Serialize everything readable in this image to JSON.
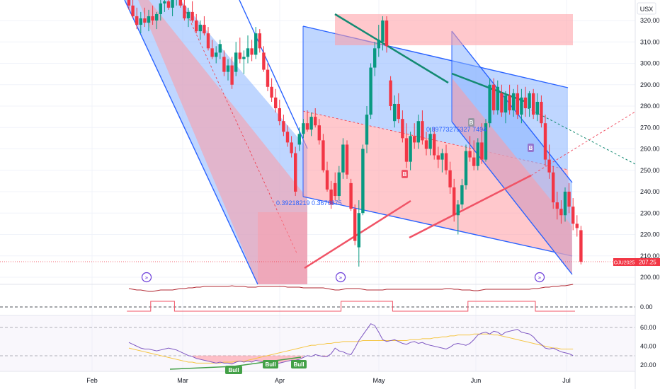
{
  "currency": "USX",
  "symbol_tag": "OJU2025",
  "last_price_label": "207.25",
  "colors": {
    "up": "#089981",
    "down": "#f23645",
    "channel_blue": "#2962ff",
    "fill_blue": "#8ab4ff",
    "fill_red": "#ff9aa3",
    "trend_green": "#138a72",
    "trend_red": "#f05366",
    "rsi_line": "#7e57c2",
    "rsi_ma": "#f5c542",
    "bull_badge": "#43a047"
  },
  "chart_data": {
    "type": "candlestick",
    "price_axis": {
      "ticks": [
        200,
        210,
        220,
        230,
        240,
        250,
        260,
        270,
        280,
        290,
        300,
        310,
        320
      ],
      "range": [
        193,
        330
      ]
    },
    "indicator1_axis": {
      "ticks": [
        "0.00"
      ]
    },
    "rsi_axis": {
      "ticks": [
        20,
        40,
        60
      ],
      "range": [
        15,
        70
      ],
      "overbought": 70,
      "oversold": 30
    },
    "x_labels": [
      "Feb",
      "Mar",
      "Apr",
      "May",
      "Jun",
      "Jul"
    ],
    "annotations": {
      "fib_text_1": "0.39218219 0.3670875",
      "fib_text_2": "0.89773275327 7494"
    },
    "candle_markers": [
      "B",
      "B",
      "B"
    ],
    "bull_labels": [
      "Bull",
      "Bull",
      "Bull"
    ],
    "candles": [
      {
        "d": "Jan 28",
        "o": 331,
        "h": 335,
        "l": 325,
        "c": 327
      },
      {
        "d": "Jan 29",
        "o": 327,
        "h": 330,
        "l": 321,
        "c": 322
      },
      {
        "d": "Jan 30",
        "o": 322,
        "h": 326,
        "l": 316,
        "c": 318
      },
      {
        "d": "Jan 31",
        "o": 318,
        "h": 324,
        "l": 314,
        "c": 321
      },
      {
        "d": "Feb 3",
        "o": 321,
        "h": 326,
        "l": 317,
        "c": 319
      },
      {
        "d": "Feb 4",
        "o": 319,
        "h": 325,
        "l": 315,
        "c": 322
      },
      {
        "d": "Feb 5",
        "o": 322,
        "h": 327,
        "l": 318,
        "c": 320
      },
      {
        "d": "Feb 6",
        "o": 320,
        "h": 324,
        "l": 316,
        "c": 323
      },
      {
        "d": "Feb 7",
        "o": 323,
        "h": 331,
        "l": 320,
        "c": 328
      },
      {
        "d": "Feb 10",
        "o": 328,
        "h": 334,
        "l": 324,
        "c": 329
      },
      {
        "d": "Feb 11",
        "o": 329,
        "h": 333,
        "l": 325,
        "c": 326
      },
      {
        "d": "Feb 12",
        "o": 326,
        "h": 331,
        "l": 322,
        "c": 330
      },
      {
        "d": "Feb 13",
        "o": 330,
        "h": 334,
        "l": 327,
        "c": 332
      },
      {
        "d": "Feb 14",
        "o": 332,
        "h": 335,
        "l": 326,
        "c": 327
      },
      {
        "d": "Feb 17",
        "o": 327,
        "h": 330,
        "l": 320,
        "c": 321
      },
      {
        "d": "Feb 18",
        "o": 321,
        "h": 326,
        "l": 317,
        "c": 324
      },
      {
        "d": "Feb 19",
        "o": 324,
        "h": 329,
        "l": 319,
        "c": 320
      },
      {
        "d": "Feb 20",
        "o": 320,
        "h": 323,
        "l": 314,
        "c": 315
      },
      {
        "d": "Feb 21",
        "o": 315,
        "h": 320,
        "l": 311,
        "c": 318
      },
      {
        "d": "Feb 24",
        "o": 318,
        "h": 322,
        "l": 313,
        "c": 314
      },
      {
        "d": "Feb 25",
        "o": 314,
        "h": 317,
        "l": 306,
        "c": 307
      },
      {
        "d": "Feb 26",
        "o": 307,
        "h": 311,
        "l": 302,
        "c": 303
      },
      {
        "d": "Feb 27",
        "o": 303,
        "h": 308,
        "l": 300,
        "c": 305
      },
      {
        "d": "Feb 28",
        "o": 305,
        "h": 311,
        "l": 302,
        "c": 309
      },
      {
        "d": "Mar 3",
        "o": 303,
        "h": 306,
        "l": 294,
        "c": 296
      },
      {
        "d": "Mar 4",
        "o": 296,
        "h": 302,
        "l": 292,
        "c": 299
      },
      {
        "d": "Mar 5",
        "o": 299,
        "h": 303,
        "l": 288,
        "c": 290
      },
      {
        "d": "Mar 6",
        "o": 296,
        "h": 310,
        "l": 294,
        "c": 305
      },
      {
        "d": "Mar 7",
        "o": 305,
        "h": 312,
        "l": 300,
        "c": 302
      },
      {
        "d": "Mar 10",
        "o": 302,
        "h": 306,
        "l": 295,
        "c": 303
      },
      {
        "d": "Mar 11",
        "o": 303,
        "h": 313,
        "l": 300,
        "c": 307
      },
      {
        "d": "Mar 12",
        "o": 307,
        "h": 311,
        "l": 301,
        "c": 304
      },
      {
        "d": "Mar 13",
        "o": 304,
        "h": 317,
        "l": 302,
        "c": 314
      },
      {
        "d": "Mar 14",
        "o": 314,
        "h": 316,
        "l": 305,
        "c": 307
      },
      {
        "d": "Mar 17",
        "o": 305,
        "h": 308,
        "l": 296,
        "c": 297
      },
      {
        "d": "Mar 18",
        "o": 297,
        "h": 300,
        "l": 287,
        "c": 289
      },
      {
        "d": "Mar 19",
        "o": 289,
        "h": 293,
        "l": 282,
        "c": 284
      },
      {
        "d": "Mar 20",
        "o": 284,
        "h": 288,
        "l": 277,
        "c": 279
      },
      {
        "d": "Mar 21",
        "o": 279,
        "h": 283,
        "l": 271,
        "c": 273
      },
      {
        "d": "Mar 24",
        "o": 273,
        "h": 276,
        "l": 266,
        "c": 268
      },
      {
        "d": "Mar 25",
        "o": 268,
        "h": 271,
        "l": 261,
        "c": 263
      },
      {
        "d": "Mar 26",
        "o": 263,
        "h": 266,
        "l": 256,
        "c": 258
      },
      {
        "d": "Mar 27",
        "o": 258,
        "h": 261,
        "l": 238,
        "c": 240
      },
      {
        "d": "Mar 28",
        "o": 262,
        "h": 270,
        "l": 259,
        "c": 267
      },
      {
        "d": "Mar 31",
        "o": 267,
        "h": 274,
        "l": 265,
        "c": 272
      },
      {
        "d": "Apr 1",
        "o": 272,
        "h": 278,
        "l": 268,
        "c": 269
      },
      {
        "d": "Apr 2",
        "o": 269,
        "h": 277,
        "l": 266,
        "c": 275
      },
      {
        "d": "Apr 3",
        "o": 275,
        "h": 279,
        "l": 270,
        "c": 271
      },
      {
        "d": "Apr 4",
        "o": 271,
        "h": 274,
        "l": 262,
        "c": 264
      },
      {
        "d": "Apr 7",
        "o": 264,
        "h": 267,
        "l": 249,
        "c": 250
      },
      {
        "d": "Apr 8",
        "o": 250,
        "h": 254,
        "l": 240,
        "c": 241
      },
      {
        "d": "Apr 9",
        "o": 241,
        "h": 245,
        "l": 232,
        "c": 234
      },
      {
        "d": "Apr 10",
        "o": 244,
        "h": 249,
        "l": 236,
        "c": 238
      },
      {
        "d": "Apr 11",
        "o": 238,
        "h": 252,
        "l": 236,
        "c": 249
      },
      {
        "d": "Apr 14",
        "o": 249,
        "h": 265,
        "l": 246,
        "c": 262
      },
      {
        "d": "Apr 15",
        "o": 262,
        "h": 264,
        "l": 246,
        "c": 248
      },
      {
        "d": "Apr 16",
        "o": 244,
        "h": 246,
        "l": 231,
        "c": 232
      },
      {
        "d": "Apr 17",
        "o": 232,
        "h": 234,
        "l": 215,
        "c": 217
      },
      {
        "d": "Apr 18",
        "o": 214,
        "h": 236,
        "l": 205,
        "c": 230
      },
      {
        "d": "Apr 21",
        "o": 230,
        "h": 262,
        "l": 229,
        "c": 260
      },
      {
        "d": "Apr 22",
        "o": 262,
        "h": 280,
        "l": 258,
        "c": 276
      },
      {
        "d": "Apr 23",
        "o": 276,
        "h": 300,
        "l": 274,
        "c": 298
      },
      {
        "d": "Apr 24",
        "o": 298,
        "h": 310,
        "l": 294,
        "c": 307
      },
      {
        "d": "Apr 25",
        "o": 307,
        "h": 318,
        "l": 303,
        "c": 311
      },
      {
        "d": "Apr 28",
        "o": 310,
        "h": 322,
        "l": 306,
        "c": 320
      },
      {
        "d": "Apr 29",
        "o": 320,
        "h": 322,
        "l": 305,
        "c": 308
      },
      {
        "d": "Apr 30",
        "o": 292,
        "h": 294,
        "l": 278,
        "c": 280
      },
      {
        "d": "May 1",
        "o": 273,
        "h": 285,
        "l": 270,
        "c": 281
      },
      {
        "d": "May 2",
        "o": 281,
        "h": 286,
        "l": 272,
        "c": 274
      },
      {
        "d": "May 5",
        "o": 274,
        "h": 278,
        "l": 263,
        "c": 265
      },
      {
        "d": "May 6",
        "o": 265,
        "h": 272,
        "l": 251,
        "c": 254
      },
      {
        "d": "May 7",
        "o": 254,
        "h": 268,
        "l": 250,
        "c": 266
      },
      {
        "d": "May 8",
        "o": 266,
        "h": 272,
        "l": 260,
        "c": 263
      },
      {
        "d": "May 9",
        "o": 263,
        "h": 276,
        "l": 260,
        "c": 273
      },
      {
        "d": "May 12",
        "o": 273,
        "h": 278,
        "l": 262,
        "c": 264
      },
      {
        "d": "May 13",
        "o": 264,
        "h": 268,
        "l": 257,
        "c": 260
      },
      {
        "d": "May 14",
        "o": 260,
        "h": 270,
        "l": 257,
        "c": 267
      },
      {
        "d": "May 15",
        "o": 267,
        "h": 270,
        "l": 255,
        "c": 257
      },
      {
        "d": "May 16",
        "o": 257,
        "h": 261,
        "l": 251,
        "c": 255
      },
      {
        "d": "May 19",
        "o": 255,
        "h": 260,
        "l": 249,
        "c": 258
      },
      {
        "d": "May 20",
        "o": 258,
        "h": 262,
        "l": 248,
        "c": 250
      },
      {
        "d": "May 21",
        "o": 250,
        "h": 254,
        "l": 239,
        "c": 242
      },
      {
        "d": "May 22",
        "o": 242,
        "h": 246,
        "l": 226,
        "c": 229
      },
      {
        "d": "May 23",
        "o": 229,
        "h": 236,
        "l": 220,
        "c": 234
      },
      {
        "d": "May 26",
        "o": 234,
        "h": 246,
        "l": 232,
        "c": 243
      },
      {
        "d": "May 27",
        "o": 243,
        "h": 262,
        "l": 241,
        "c": 259
      },
      {
        "d": "May 28",
        "o": 259,
        "h": 266,
        "l": 254,
        "c": 256
      },
      {
        "d": "May 29",
        "o": 256,
        "h": 264,
        "l": 250,
        "c": 252
      },
      {
        "d": "May 30",
        "o": 252,
        "h": 265,
        "l": 250,
        "c": 263
      },
      {
        "d": "Jun 2",
        "o": 263,
        "h": 272,
        "l": 253,
        "c": 255
      },
      {
        "d": "Jun 3",
        "o": 255,
        "h": 274,
        "l": 254,
        "c": 272
      },
      {
        "d": "Jun 4",
        "o": 272,
        "h": 293,
        "l": 270,
        "c": 290
      },
      {
        "d": "Jun 5",
        "o": 290,
        "h": 293,
        "l": 276,
        "c": 278
      },
      {
        "d": "Jun 6",
        "o": 278,
        "h": 292,
        "l": 276,
        "c": 289
      },
      {
        "d": "Jun 9",
        "o": 286,
        "h": 290,
        "l": 275,
        "c": 277
      },
      {
        "d": "Jun 10",
        "o": 277,
        "h": 287,
        "l": 272,
        "c": 285
      },
      {
        "d": "Jun 11",
        "o": 285,
        "h": 290,
        "l": 276,
        "c": 278
      },
      {
        "d": "Jun 12",
        "o": 278,
        "h": 288,
        "l": 275,
        "c": 286
      },
      {
        "d": "Jun 13",
        "o": 286,
        "h": 290,
        "l": 274,
        "c": 276
      },
      {
        "d": "Jun 16",
        "o": 276,
        "h": 288,
        "l": 272,
        "c": 284
      },
      {
        "d": "Jun 17",
        "o": 284,
        "h": 289,
        "l": 275,
        "c": 279
      },
      {
        "d": "Jun 18",
        "o": 279,
        "h": 287,
        "l": 275,
        "c": 286
      },
      {
        "d": "Jun 19",
        "o": 286,
        "h": 288,
        "l": 274,
        "c": 276
      },
      {
        "d": "Jun 20",
        "o": 276,
        "h": 286,
        "l": 273,
        "c": 282
      },
      {
        "d": "Jun 23",
        "o": 282,
        "h": 285,
        "l": 270,
        "c": 272
      },
      {
        "d": "Jun 24",
        "o": 272,
        "h": 276,
        "l": 252,
        "c": 255
      },
      {
        "d": "Jun 25",
        "o": 255,
        "h": 262,
        "l": 246,
        "c": 249
      },
      {
        "d": "Jun 26",
        "o": 249,
        "h": 252,
        "l": 232,
        "c": 235
      },
      {
        "d": "Jun 27",
        "o": 235,
        "h": 240,
        "l": 227,
        "c": 232
      },
      {
        "d": "Jun 30",
        "o": 232,
        "h": 236,
        "l": 225,
        "c": 229
      },
      {
        "d": "Jul 1",
        "o": 229,
        "h": 242,
        "l": 226,
        "c": 240
      },
      {
        "d": "Jul 2",
        "o": 240,
        "h": 244,
        "l": 230,
        "c": 233
      },
      {
        "d": "Jul 3",
        "o": 233,
        "h": 237,
        "l": 222,
        "c": 225
      },
      {
        "d": "Jul 7",
        "o": 225,
        "h": 229,
        "l": 219,
        "c": 223
      },
      {
        "d": "Jul 8",
        "o": 222,
        "h": 224,
        "l": 206,
        "c": 207.25
      }
    ],
    "rsi": [
      44,
      42,
      40,
      38,
      37,
      37,
      36,
      35,
      36,
      37,
      38,
      37,
      36,
      34,
      32,
      30,
      29,
      27,
      26,
      25,
      24,
      23,
      22,
      23,
      22,
      22,
      21,
      23,
      24,
      23,
      24,
      23,
      25,
      24,
      23,
      22,
      21,
      21,
      22,
      23,
      24,
      25,
      25,
      26,
      28,
      30,
      29,
      31,
      30,
      29,
      29,
      32,
      38,
      35,
      34,
      32,
      31,
      38,
      46,
      52,
      58,
      64,
      62,
      55,
      47,
      45,
      46,
      47,
      45,
      43,
      42,
      44,
      45,
      43,
      44,
      42,
      41,
      40,
      39,
      38,
      37,
      39,
      42,
      43,
      42,
      41,
      43,
      47,
      52,
      54,
      55,
      53,
      56,
      55,
      52,
      55,
      56,
      57,
      58,
      55,
      54,
      53,
      50,
      45,
      42,
      38,
      37,
      38,
      36,
      34,
      33,
      32,
      30
    ],
    "rsi_ma": [
      38,
      37,
      36,
      35,
      34,
      33,
      32,
      31,
      30,
      29,
      28,
      27,
      26,
      25,
      24,
      23,
      23,
      22,
      22,
      22,
      22,
      22,
      22,
      22,
      23,
      23,
      23,
      24,
      24,
      24,
      25,
      26,
      27,
      28,
      29,
      30,
      31,
      32,
      33,
      34,
      35,
      36,
      37,
      38,
      39,
      40,
      41,
      41,
      42,
      42,
      43,
      43,
      44,
      44,
      45,
      45,
      45,
      45,
      45,
      46,
      46,
      46,
      46,
      46,
      46,
      46,
      46,
      46,
      46,
      46,
      46,
      47,
      47,
      47,
      48,
      48,
      48,
      49,
      49,
      50,
      50,
      51,
      51,
      52,
      52,
      52,
      52,
      53,
      53,
      53,
      53,
      53,
      52,
      52,
      51,
      50,
      49,
      48,
      47,
      46,
      45,
      44,
      43,
      42,
      41,
      40,
      39,
      38,
      38,
      37,
      37,
      37,
      37
    ],
    "ind1": [
      120,
      121,
      122,
      122,
      123,
      124,
      124,
      123,
      122,
      122,
      122,
      122,
      121,
      120,
      120,
      119,
      119,
      118,
      118,
      117,
      117,
      117,
      117,
      117,
      117,
      117,
      116,
      117,
      117,
      117,
      118,
      118,
      118,
      117,
      117,
      117,
      117,
      117,
      117,
      117,
      118,
      118,
      118,
      118,
      119,
      119,
      119,
      119,
      119,
      119,
      120,
      121,
      122,
      122,
      121,
      120,
      120,
      120,
      120,
      121,
      122,
      122,
      122,
      122,
      122,
      121,
      121,
      121,
      121,
      121,
      121,
      121,
      121,
      121,
      121,
      121,
      121,
      121,
      121,
      121,
      120,
      120,
      121,
      121,
      122,
      122,
      122,
      123,
      123,
      122,
      121,
      121,
      121,
      121,
      121,
      121,
      121,
      121,
      121,
      121,
      121,
      121,
      120,
      120,
      119,
      118,
      118,
      117,
      117,
      116,
      116,
      115,
      114
    ],
    "ind2": [
      0,
      0,
      0,
      0,
      0,
      0,
      1,
      1,
      1,
      1,
      1,
      1,
      0,
      0,
      0,
      0,
      0,
      0,
      0,
      0,
      0,
      0,
      0,
      0,
      0,
      0,
      0,
      0,
      0,
      0,
      0,
      0,
      0,
      0,
      0,
      0,
      0,
      0,
      0,
      0,
      0,
      0,
      0,
      0,
      0,
      0,
      0,
      0,
      0,
      0,
      0,
      0,
      0,
      0,
      1,
      1,
      1,
      1,
      1,
      1,
      1,
      1,
      1,
      1,
      1,
      1,
      1,
      0,
      0,
      0,
      0,
      0,
      0,
      0,
      0,
      0,
      0,
      0,
      0,
      0,
      0,
      0,
      0,
      0,
      0,
      0,
      1,
      1,
      1,
      1,
      1,
      1,
      1,
      1,
      1,
      1,
      1,
      1,
      1,
      1,
      1,
      1,
      1,
      0,
      0,
      0,
      0,
      0,
      0,
      0,
      0,
      0,
      0
    ]
  }
}
